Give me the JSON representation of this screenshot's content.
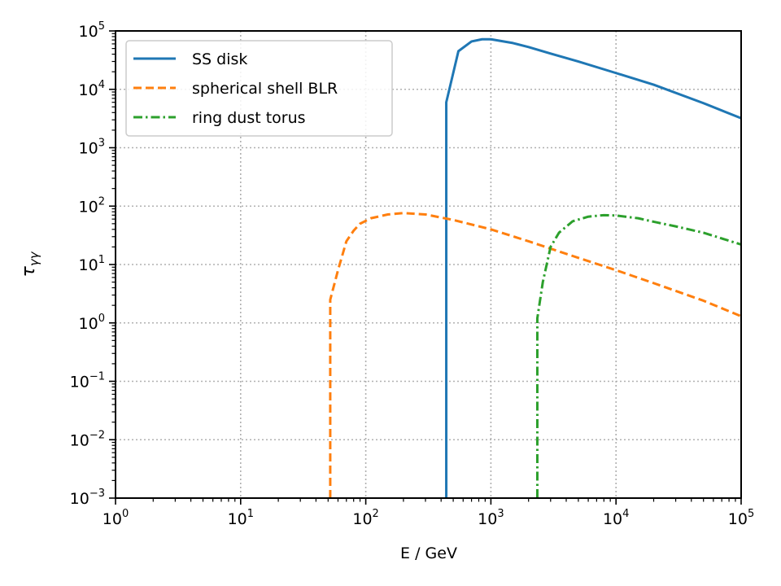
{
  "chart_data": {
    "type": "line",
    "title": "",
    "xlabel": "E / GeV",
    "ylabel": "τ_γγ",
    "xscale": "log",
    "yscale": "log",
    "xlim": [
      1,
      100000
    ],
    "ylim": [
      0.001,
      100000
    ],
    "grid": true,
    "grid_style": "dotted",
    "legend_position": "upper-left",
    "x_tick_labels": [
      {
        "base": "10",
        "exp": "0"
      },
      {
        "base": "10",
        "exp": "1"
      },
      {
        "base": "10",
        "exp": "2"
      },
      {
        "base": "10",
        "exp": "3"
      },
      {
        "base": "10",
        "exp": "4"
      },
      {
        "base": "10",
        "exp": "5"
      }
    ],
    "y_tick_labels": [
      {
        "base": "10",
        "exp": "−3"
      },
      {
        "base": "10",
        "exp": "−2"
      },
      {
        "base": "10",
        "exp": "−1"
      },
      {
        "base": "10",
        "exp": "0"
      },
      {
        "base": "10",
        "exp": "1"
      },
      {
        "base": "10",
        "exp": "2"
      },
      {
        "base": "10",
        "exp": "3"
      },
      {
        "base": "10",
        "exp": "4"
      },
      {
        "base": "10",
        "exp": "5"
      }
    ],
    "series": [
      {
        "name": "SS disk",
        "color": "#1f77b4",
        "linestyle": "solid",
        "points": [
          [
            440,
            0.001
          ],
          [
            440,
            6000
          ],
          [
            550,
            45000
          ],
          [
            700,
            66000
          ],
          [
            850,
            72000
          ],
          [
            1000,
            72000
          ],
          [
            1500,
            62000
          ],
          [
            2000,
            53000
          ],
          [
            3000,
            41000
          ],
          [
            5000,
            30000
          ],
          [
            10000,
            19000
          ],
          [
            20000,
            12000
          ],
          [
            50000,
            5800
          ],
          [
            100000,
            3200
          ]
        ]
      },
      {
        "name": "spherical shell BLR",
        "color": "#ff7f0e",
        "linestyle": "dashed",
        "points": [
          [
            52,
            0.001
          ],
          [
            52,
            2.5
          ],
          [
            60,
            8
          ],
          [
            70,
            25
          ],
          [
            80,
            38
          ],
          [
            90,
            50
          ],
          [
            110,
            62
          ],
          [
            150,
            72
          ],
          [
            200,
            76
          ],
          [
            300,
            72
          ],
          [
            500,
            58
          ],
          [
            1000,
            40
          ],
          [
            2000,
            25
          ],
          [
            5000,
            13
          ],
          [
            10000,
            8
          ],
          [
            20000,
            4.8
          ],
          [
            50000,
            2.4
          ],
          [
            100000,
            1.3
          ]
        ]
      },
      {
        "name": "ring dust torus",
        "color": "#2ca02c",
        "linestyle": "dashdot",
        "points": [
          [
            2350,
            0.001
          ],
          [
            2350,
            1.2
          ],
          [
            2600,
            5
          ],
          [
            3000,
            20
          ],
          [
            3500,
            35
          ],
          [
            4500,
            55
          ],
          [
            6000,
            66
          ],
          [
            8000,
            70
          ],
          [
            10000,
            69
          ],
          [
            15000,
            62
          ],
          [
            20000,
            54
          ],
          [
            30000,
            45
          ],
          [
            50000,
            35
          ],
          [
            100000,
            22
          ]
        ]
      }
    ]
  }
}
